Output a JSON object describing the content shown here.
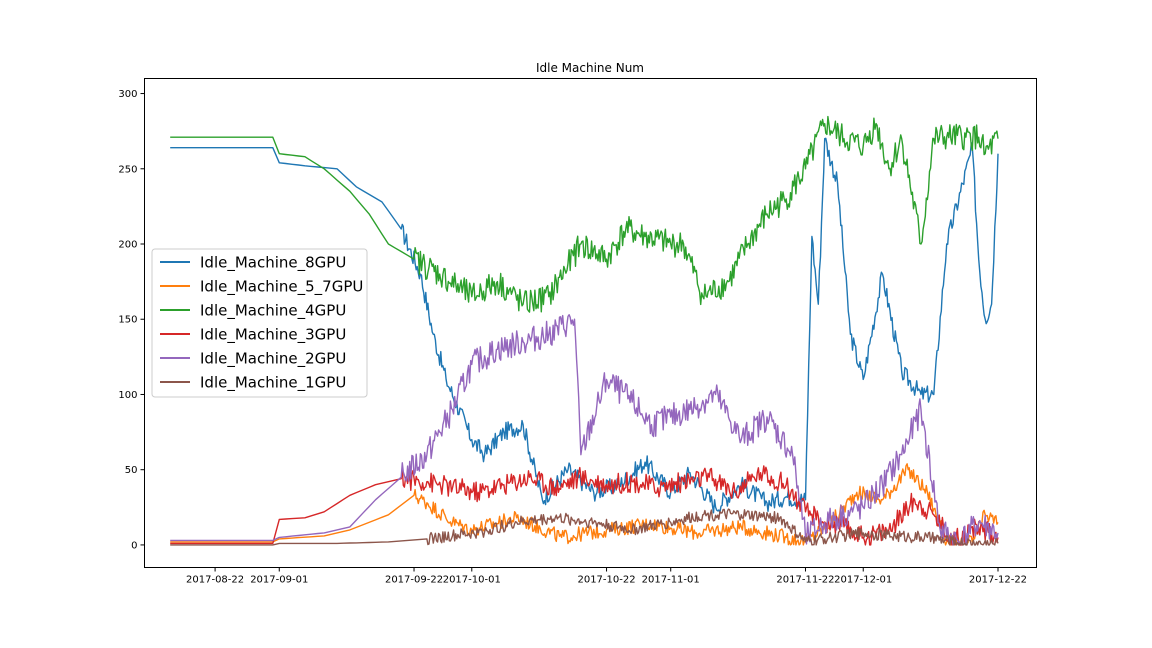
{
  "chart_data": {
    "type": "line",
    "title": "Idle Machine Num",
    "xlabel": "",
    "ylabel": "",
    "x_type": "date",
    "xlim": [
      "2017-08-11",
      "2017-12-28"
    ],
    "ylim": [
      -15,
      310
    ],
    "x_ticks": [
      {
        "label": "2017-08-22",
        "date": "2017-08-22"
      },
      {
        "label": "2017-09-01",
        "date": "2017-09-01"
      },
      {
        "label": "2017-09-22",
        "date": "2017-09-22"
      },
      {
        "label": "2017-10-01",
        "date": "2017-10-01"
      },
      {
        "label": "2017-10-22",
        "date": "2017-10-22"
      },
      {
        "label": "2017-11-01",
        "date": "2017-11-01"
      },
      {
        "label": "2017-11-22",
        "date": "2017-11-22"
      },
      {
        "label": "2017-12-01",
        "date": "2017-12-01"
      },
      {
        "label": "2017-12-22",
        "date": "2017-12-22"
      }
    ],
    "y_ticks": [
      0,
      50,
      100,
      150,
      200,
      250,
      300
    ],
    "grid": false,
    "legend_position": "center-left",
    "series": [
      {
        "name": "Idle_Machine_8GPU",
        "color": "#1f77b4",
        "x": [
          "2017-08-15",
          "2017-08-31",
          "2017-09-01",
          "2017-09-05",
          "2017-09-10",
          "2017-09-13",
          "2017-09-17",
          "2017-09-20",
          "2017-09-23",
          "2017-09-25",
          "2017-09-27",
          "2017-10-01",
          "2017-10-03",
          "2017-10-06",
          "2017-10-09",
          "2017-10-12",
          "2017-10-16",
          "2017-10-20",
          "2017-10-24",
          "2017-10-28",
          "2017-11-01",
          "2017-11-04",
          "2017-11-08",
          "2017-11-12",
          "2017-11-16",
          "2017-11-19",
          "2017-11-22",
          "2017-11-23",
          "2017-11-24",
          "2017-11-25",
          "2017-11-27",
          "2017-11-29",
          "2017-12-01",
          "2017-12-04",
          "2017-12-07",
          "2017-12-10",
          "2017-12-12",
          "2017-12-14",
          "2017-12-18",
          "2017-12-19",
          "2017-12-20",
          "2017-12-21",
          "2017-12-22"
        ],
        "y": [
          264,
          264,
          254,
          252,
          250,
          238,
          228,
          210,
          180,
          140,
          110,
          70,
          60,
          75,
          80,
          30,
          50,
          35,
          40,
          55,
          35,
          48,
          25,
          40,
          28,
          32,
          30,
          205,
          160,
          270,
          240,
          140,
          110,
          180,
          115,
          100,
          100,
          200,
          264,
          190,
          150,
          160,
          260
        ]
      },
      {
        "name": "Idle_Machine_5_7GPU",
        "color": "#ff7f0e",
        "x": [
          "2017-08-15",
          "2017-08-31",
          "2017-09-01",
          "2017-09-08",
          "2017-09-12",
          "2017-09-18",
          "2017-09-22",
          "2017-09-24",
          "2017-09-28",
          "2017-10-01",
          "2017-10-08",
          "2017-10-15",
          "2017-10-22",
          "2017-10-29",
          "2017-11-05",
          "2017-11-12",
          "2017-11-19",
          "2017-11-22",
          "2017-11-26",
          "2017-11-30",
          "2017-12-04",
          "2017-12-08",
          "2017-12-11",
          "2017-12-14",
          "2017-12-18",
          "2017-12-20",
          "2017-12-22"
        ],
        "y": [
          2,
          2,
          4,
          6,
          10,
          20,
          33,
          28,
          15,
          10,
          18,
          5,
          10,
          14,
          8,
          12,
          5,
          2,
          15,
          35,
          30,
          50,
          35,
          2,
          2,
          20,
          15
        ]
      },
      {
        "name": "Idle_Machine_4GPU",
        "color": "#2ca02c",
        "x": [
          "2017-08-15",
          "2017-08-31",
          "2017-09-01",
          "2017-09-05",
          "2017-09-08",
          "2017-09-12",
          "2017-09-15",
          "2017-09-18",
          "2017-09-22",
          "2017-09-26",
          "2017-10-01",
          "2017-10-05",
          "2017-10-09",
          "2017-10-13",
          "2017-10-18",
          "2017-10-22",
          "2017-10-25",
          "2017-10-28",
          "2017-11-01",
          "2017-11-03",
          "2017-11-06",
          "2017-11-10",
          "2017-11-13",
          "2017-11-16",
          "2017-11-19",
          "2017-11-22",
          "2017-11-25",
          "2017-11-28",
          "2017-12-01",
          "2017-12-03",
          "2017-12-05",
          "2017-12-07",
          "2017-12-10",
          "2017-12-12",
          "2017-12-14",
          "2017-12-17",
          "2017-12-19",
          "2017-12-20",
          "2017-12-22"
        ],
        "y": [
          271,
          271,
          260,
          258,
          250,
          235,
          220,
          200,
          190,
          180,
          165,
          175,
          160,
          165,
          200,
          190,
          210,
          205,
          200,
          200,
          165,
          175,
          200,
          220,
          230,
          250,
          280,
          270,
          265,
          280,
          250,
          270,
          200,
          270,
          271,
          271,
          271,
          260,
          270
        ]
      },
      {
        "name": "Idle_Machine_3GPU",
        "color": "#d62728",
        "x": [
          "2017-08-15",
          "2017-08-31",
          "2017-09-01",
          "2017-09-05",
          "2017-09-08",
          "2017-09-12",
          "2017-09-16",
          "2017-09-20",
          "2017-09-24",
          "2017-09-28",
          "2017-10-02",
          "2017-10-06",
          "2017-10-10",
          "2017-10-14",
          "2017-10-18",
          "2017-10-22",
          "2017-10-26",
          "2017-10-30",
          "2017-11-03",
          "2017-11-07",
          "2017-11-11",
          "2017-11-15",
          "2017-11-19",
          "2017-11-22",
          "2017-11-25",
          "2017-11-28",
          "2017-12-01",
          "2017-12-05",
          "2017-12-09",
          "2017-12-12",
          "2017-12-15",
          "2017-12-19",
          "2017-12-22"
        ],
        "y": [
          1,
          1,
          17,
          18,
          22,
          33,
          40,
          44,
          42,
          38,
          35,
          40,
          45,
          38,
          45,
          40,
          42,
          38,
          42,
          45,
          35,
          48,
          40,
          22,
          15,
          12,
          5,
          10,
          30,
          20,
          3,
          12,
          5
        ]
      },
      {
        "name": "Idle_Machine_2GPU",
        "color": "#9467bd",
        "x": [
          "2017-08-15",
          "2017-08-31",
          "2017-09-01",
          "2017-09-08",
          "2017-09-12",
          "2017-09-16",
          "2017-09-20",
          "2017-09-24",
          "2017-09-28",
          "2017-10-01",
          "2017-10-05",
          "2017-10-09",
          "2017-10-13",
          "2017-10-17",
          "2017-10-18",
          "2017-10-22",
          "2017-10-26",
          "2017-10-29",
          "2017-11-01",
          "2017-11-04",
          "2017-11-08",
          "2017-11-12",
          "2017-11-16",
          "2017-11-20",
          "2017-11-22",
          "2017-11-25",
          "2017-11-28",
          "2017-12-01",
          "2017-12-04",
          "2017-12-07",
          "2017-12-10",
          "2017-12-13",
          "2017-12-16",
          "2017-12-19",
          "2017-12-22"
        ],
        "y": [
          3,
          3,
          5,
          8,
          12,
          30,
          45,
          60,
          90,
          120,
          130,
          135,
          140,
          150,
          60,
          110,
          95,
          80,
          85,
          90,
          100,
          70,
          85,
          60,
          5,
          15,
          20,
          25,
          40,
          60,
          90,
          10,
          2,
          15,
          8
        ]
      },
      {
        "name": "Idle_Machine_1GPU",
        "color": "#8c564b",
        "x": [
          "2017-08-15",
          "2017-08-31",
          "2017-09-01",
          "2017-09-10",
          "2017-09-18",
          "2017-09-24",
          "2017-09-28",
          "2017-10-02",
          "2017-10-08",
          "2017-10-14",
          "2017-10-20",
          "2017-10-26",
          "2017-11-01",
          "2017-11-06",
          "2017-11-12",
          "2017-11-18",
          "2017-11-22",
          "2017-11-26",
          "2017-12-01",
          "2017-12-06",
          "2017-12-11",
          "2017-12-16",
          "2017-12-22"
        ],
        "y": [
          0,
          0,
          1,
          1,
          2,
          4,
          6,
          8,
          15,
          18,
          15,
          10,
          15,
          20,
          20,
          18,
          2,
          5,
          8,
          6,
          5,
          1,
          1
        ]
      }
    ]
  }
}
